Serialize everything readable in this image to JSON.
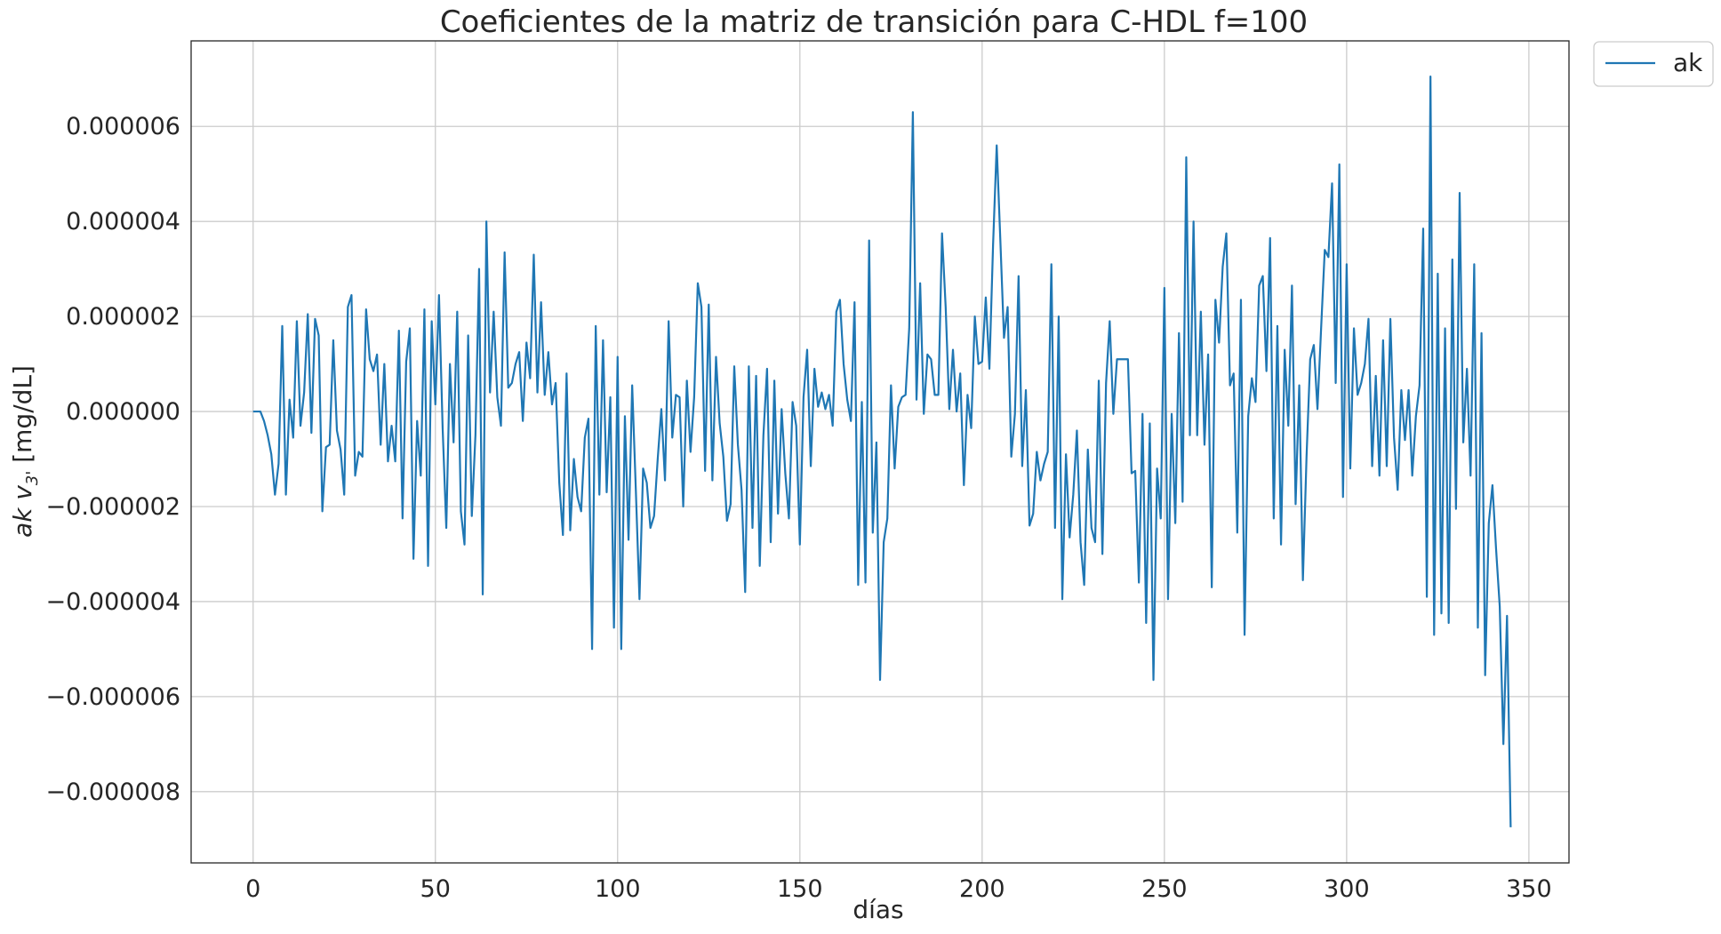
{
  "chart_data": {
    "type": "line",
    "title": "Coeficientes de la matriz de transición para C-HDL f=100",
    "xlabel": "días",
    "ylabel_italic": "ak v",
    "ylabel_sub": "3'",
    "ylabel_unit": " [mg/dL]",
    "xlim": [
      -17,
      361
    ],
    "ylim": [
      -9.5e-06,
      7.8e-06
    ],
    "xticks": [
      0,
      50,
      100,
      150,
      200,
      250,
      300,
      350
    ],
    "xtick_labels": [
      "0",
      "50",
      "100",
      "150",
      "200",
      "250",
      "300",
      "350"
    ],
    "yticks": [
      -8e-06,
      -6e-06,
      -4e-06,
      -2e-06,
      0,
      2e-06,
      4e-06,
      6e-06
    ],
    "ytick_labels": [
      "−0.000008",
      "−0.000006",
      "−0.000004",
      "−0.000002",
      "0.000000",
      "0.000002",
      "0.000004",
      "0.000006"
    ],
    "grid": true,
    "legend_position": "outside-top-right",
    "series": [
      {
        "name": "ak",
        "color": "#1f77b4",
        "x_start": 0,
        "x_step": 1,
        "values_e6": [
          0.0,
          0.0,
          0.0,
          -0.2,
          -0.5,
          -0.9,
          -1.75,
          -1.1,
          1.8,
          -1.75,
          0.25,
          -0.55,
          1.9,
          -0.3,
          0.4,
          2.05,
          -0.45,
          1.95,
          1.6,
          -2.1,
          -0.75,
          -0.7,
          1.5,
          -0.4,
          -0.8,
          -1.75,
          2.2,
          2.45,
          -1.35,
          -0.85,
          -0.95,
          2.15,
          1.1,
          0.85,
          1.2,
          -0.7,
          1.0,
          -1.05,
          -0.3,
          -1.05,
          1.7,
          -2.25,
          1.05,
          1.75,
          -3.1,
          -0.2,
          -1.35,
          2.15,
          -3.25,
          1.9,
          0.15,
          2.45,
          -0.35,
          -2.45,
          1.0,
          -0.65,
          2.1,
          -2.1,
          -2.8,
          1.6,
          -2.2,
          -0.5,
          3.0,
          -3.85,
          4.0,
          0.4,
          2.1,
          0.3,
          -0.3,
          3.35,
          0.5,
          0.6,
          1.0,
          1.25,
          -0.2,
          1.45,
          0.7,
          3.3,
          0.4,
          2.3,
          0.35,
          1.25,
          0.15,
          0.6,
          -1.5,
          -2.6,
          0.8,
          -2.5,
          -1.0,
          -1.8,
          -2.1,
          -0.55,
          -0.15,
          -5.0,
          1.8,
          -1.75,
          1.5,
          -1.7,
          0.3,
          -4.55,
          1.15,
          -5.0,
          -0.1,
          -2.7,
          0.55,
          -1.65,
          -3.95,
          -1.2,
          -1.5,
          -2.45,
          -2.2,
          -1.0,
          0.05,
          -1.45,
          1.9,
          -0.55,
          0.35,
          0.3,
          -2.0,
          0.65,
          -0.85,
          0.3,
          2.7,
          2.2,
          -1.25,
          2.25,
          -1.45,
          1.15,
          -0.25,
          -0.95,
          -2.3,
          -1.95,
          0.95,
          -0.7,
          -1.65,
          -3.8,
          0.95,
          -2.45,
          0.75,
          -3.25,
          -0.5,
          0.9,
          -2.75,
          0.65,
          -2.15,
          0.05,
          -1.3,
          -2.25,
          0.2,
          -0.3,
          -2.8,
          0.3,
          1.3,
          -1.15,
          0.9,
          0.1,
          0.4,
          0.05,
          0.35,
          -0.3,
          2.1,
          2.35,
          1.0,
          0.25,
          -0.2,
          2.3,
          -3.65,
          0.2,
          -3.6,
          3.6,
          -2.55,
          -0.65,
          -5.65,
          -2.75,
          -2.25,
          0.55,
          -1.2,
          0.1,
          0.3,
          0.35,
          1.75,
          6.3,
          0.25,
          2.7,
          -0.05,
          1.2,
          1.1,
          0.35,
          0.35,
          3.75,
          2.2,
          0.05,
          1.3,
          0.0,
          0.8,
          -1.55,
          0.35,
          -0.35,
          2.0,
          1.0,
          1.05,
          2.4,
          0.9,
          3.5,
          5.6,
          3.6,
          1.55,
          2.2,
          -0.95,
          -0.05,
          2.85,
          -1.15,
          0.45,
          -2.4,
          -2.15,
          -0.85,
          -1.45,
          -1.1,
          -0.85,
          3.1,
          -2.45,
          2.0,
          -3.95,
          -0.9,
          -2.65,
          -1.75,
          -0.4,
          -2.75,
          -3.65,
          -0.8,
          -2.45,
          -2.75,
          0.65,
          -3.0,
          0.6,
          1.9,
          -0.05,
          1.1,
          1.1,
          1.1,
          1.1,
          -1.3,
          -1.25,
          -3.6,
          -0.05,
          -4.45,
          -0.25,
          -5.65,
          -1.2,
          -2.25,
          2.6,
          -3.95,
          -0.05,
          -2.35,
          1.65,
          -1.9,
          5.35,
          -0.5,
          4.0,
          -0.5,
          2.1,
          -0.7,
          1.2,
          -3.7,
          2.35,
          1.45,
          3.05,
          3.75,
          0.55,
          0.8,
          -2.55,
          2.35,
          -4.7,
          -0.1,
          0.7,
          0.2,
          2.65,
          2.85,
          0.85,
          3.65,
          -2.25,
          1.8,
          -2.8,
          1.3,
          -0.3,
          2.65,
          -1.95,
          0.55,
          -3.55,
          -0.95,
          1.1,
          1.4,
          0.05,
          1.75,
          3.4,
          3.25,
          4.8,
          0.6,
          5.2,
          -1.8,
          3.1,
          -1.2,
          1.75,
          0.35,
          0.6,
          1.0,
          1.95,
          -1.15,
          0.75,
          -1.35,
          1.5,
          -1.15,
          1.95,
          -0.55,
          -1.65,
          0.45,
          -0.6,
          0.45,
          -1.35,
          -0.1,
          0.55,
          3.85,
          -3.9,
          7.05,
          -4.7,
          2.9,
          -4.25,
          1.75,
          -4.45,
          3.2,
          -2.05,
          4.6,
          -0.65,
          0.9,
          -1.35,
          3.1,
          -4.55,
          1.65,
          -5.55,
          -2.35,
          -1.55,
          -2.9,
          -4.1,
          -7.0,
          -4.3,
          -8.75
        ]
      }
    ]
  }
}
